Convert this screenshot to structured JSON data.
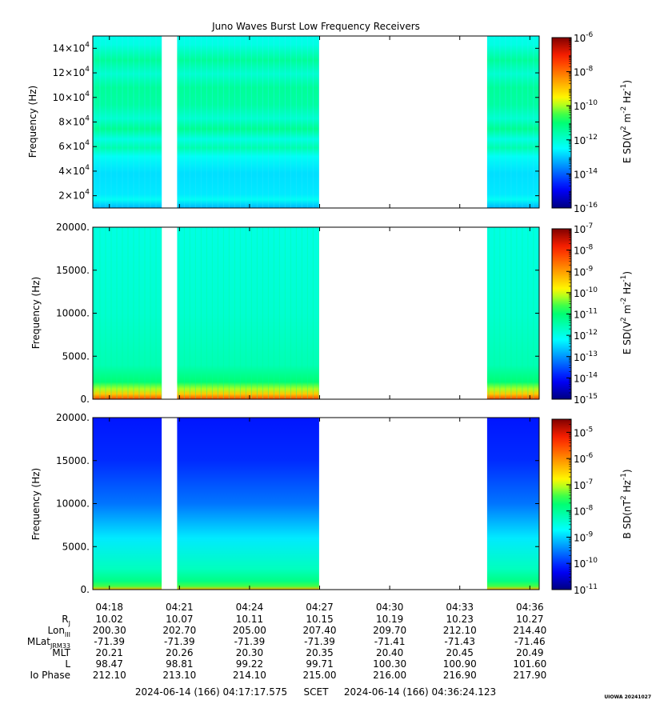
{
  "figure": {
    "title": "Juno Waves Burst Low Frequency Receivers",
    "credit": "UIOWA 20241027"
  },
  "time_axis": {
    "tick_labels": [
      "04:18",
      "04:21",
      "04:24",
      "04:27",
      "04:30",
      "04:33",
      "04:36"
    ],
    "ephemeris_rows": [
      {
        "label": "Rj",
        "values": [
          "10.02",
          "10.07",
          "10.11",
          "10.15",
          "10.19",
          "10.23",
          "10.27"
        ]
      },
      {
        "label": "LonIII",
        "values": [
          "200.30",
          "202.70",
          "205.00",
          "207.40",
          "209.70",
          "212.10",
          "214.40"
        ]
      },
      {
        "label": "MLatJRM33",
        "values": [
          "-71.39",
          "-71.39",
          "-71.39",
          "-71.39",
          "-71.41",
          "-71.43",
          "-71.46"
        ]
      },
      {
        "label": "MLT",
        "values": [
          "20.21",
          "20.26",
          "20.30",
          "20.35",
          "20.40",
          "20.45",
          "20.49"
        ]
      },
      {
        "label": "L",
        "values": [
          "98.47",
          "98.81",
          "99.22",
          "99.71",
          "100.30",
          "100.90",
          "101.60"
        ]
      },
      {
        "label": "Io Phase",
        "values": [
          "212.10",
          "213.10",
          "214.10",
          "215.00",
          "216.00",
          "216.90",
          "217.90"
        ]
      }
    ],
    "footer_start": "2024-06-14 (166) 04:17:17.575",
    "footer_scet": "SCET",
    "footer_end": "2024-06-14 (166) 04:36:24.123"
  },
  "chart_data": [
    {
      "type": "heatmap",
      "ylabel": "Frequency (Hz)",
      "ylim": [
        10000,
        150000
      ],
      "yticks": [
        20000,
        40000,
        60000,
        80000,
        100000,
        120000,
        140000
      ],
      "ytick_mantissa": [
        "2",
        "4",
        "6",
        "8",
        "10",
        "12",
        "14"
      ],
      "ytick_base": "×10",
      "ytick_exp": "4",
      "xlim_minutes": [
        17.29,
        36.4
      ],
      "data_gaps_minutes": [
        [
          20.24,
          20.9
        ],
        [
          26.98,
          34.17
        ]
      ],
      "colorbar": {
        "label_main": "E SD(V",
        "label_sup1": "2",
        "label_mid": " m",
        "label_sup2": "-2",
        "label_mid2": " Hz",
        "label_sup3": "-1",
        "label_end": ")",
        "log_range": [
          -16,
          -6
        ],
        "tick_exponents": [
          "-6",
          "-8",
          "-10",
          "-12",
          "-14",
          "-16"
        ]
      }
    },
    {
      "type": "heatmap",
      "ylabel": "Frequency (Hz)",
      "ylim": [
        0,
        20000
      ],
      "yticks": [
        0,
        5000,
        10000,
        15000,
        20000
      ],
      "ytick_labels": [
        "0.",
        "5000.",
        "10000.",
        "15000.",
        "20000."
      ],
      "xlim_minutes": [
        17.29,
        36.4
      ],
      "data_gaps_minutes": [
        [
          20.24,
          20.9
        ],
        [
          26.98,
          34.17
        ]
      ],
      "colorbar": {
        "label_main": "E SD(V",
        "label_sup1": "2",
        "label_mid": " m",
        "label_sup2": "-2",
        "label_mid2": " Hz",
        "label_sup3": "-1",
        "label_end": ")",
        "log_range": [
          -15,
          -7
        ],
        "tick_exponents": [
          "-7",
          "-8",
          "-9",
          "-10",
          "-11",
          "-12",
          "-13",
          "-14",
          "-15"
        ]
      }
    },
    {
      "type": "heatmap",
      "ylabel": "Frequency (Hz)",
      "ylim": [
        0,
        20000
      ],
      "yticks": [
        0,
        5000,
        10000,
        15000,
        20000
      ],
      "ytick_labels": [
        "0.",
        "5000.",
        "10000.",
        "15000.",
        "20000."
      ],
      "xlim_minutes": [
        17.29,
        36.4
      ],
      "data_gaps_minutes": [
        [
          20.24,
          20.9
        ],
        [
          26.98,
          34.17
        ]
      ],
      "colorbar": {
        "label_main": "B SD(nT",
        "label_sup1": "2",
        "label_mid": " Hz",
        "label_sup2": "-1",
        "label_mid2": "",
        "label_sup3": "",
        "label_end": ")",
        "log_range": [
          -11,
          -4.5
        ],
        "tick_exponents": [
          "-5",
          "-6",
          "-7",
          "-8",
          "-9",
          "-10",
          "-11"
        ]
      }
    }
  ]
}
